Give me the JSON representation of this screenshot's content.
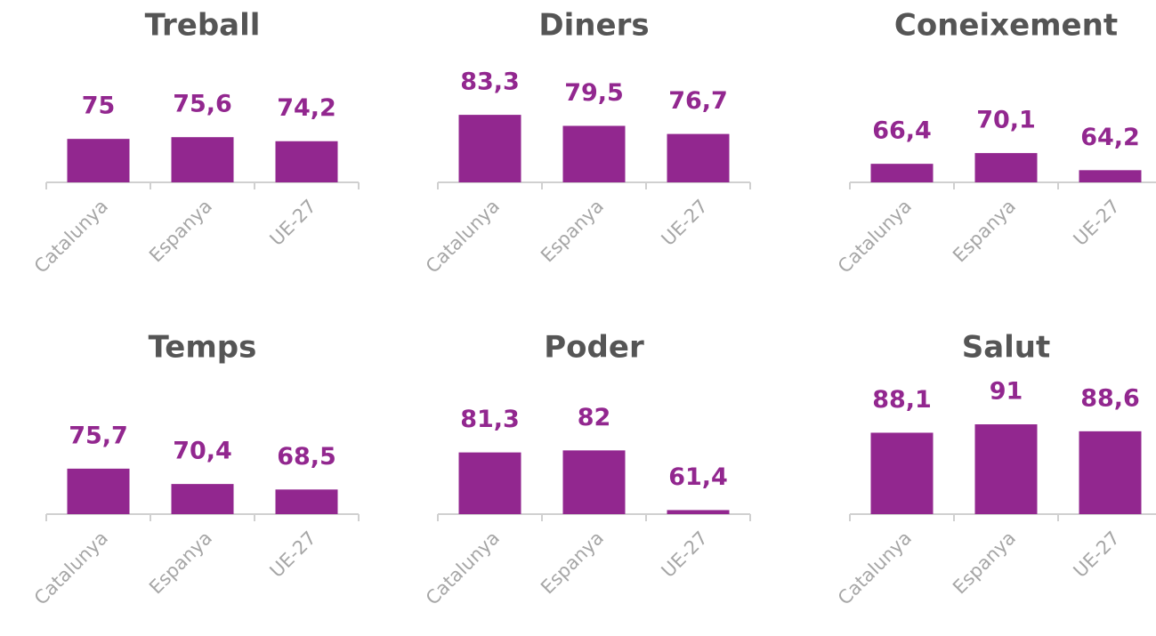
{
  "chart_data": [
    {
      "type": "bar",
      "title": "Treball",
      "categories": [
        "Catalunya",
        "Espanya",
        "UE-27"
      ],
      "values": [
        75,
        75.6,
        74.2
      ],
      "value_labels": [
        "75",
        "75,6",
        "74,2"
      ],
      "color": "#92278f",
      "ylim": [
        60,
        95
      ]
    },
    {
      "type": "bar",
      "title": "Diners",
      "categories": [
        "Catalunya",
        "Espanya",
        "UE-27"
      ],
      "values": [
        83.3,
        79.5,
        76.7
      ],
      "value_labels": [
        "83,3",
        "79,5",
        "76,7"
      ],
      "color": "#92278f",
      "ylim": [
        60,
        95
      ]
    },
    {
      "type": "bar",
      "title": "Coneixement",
      "categories": [
        "Catalunya",
        "Espanya",
        "UE-27"
      ],
      "values": [
        66.4,
        70.1,
        64.2
      ],
      "value_labels": [
        "66,4",
        "70,1",
        "64,2"
      ],
      "color": "#92278f",
      "ylim": [
        60,
        95
      ]
    },
    {
      "type": "bar",
      "title": "Temps",
      "categories": [
        "Catalunya",
        "Espanya",
        "UE-27"
      ],
      "values": [
        75.7,
        70.4,
        68.5
      ],
      "value_labels": [
        "75,7",
        "70,4",
        "68,5"
      ],
      "color": "#92278f",
      "ylim": [
        60,
        95
      ]
    },
    {
      "type": "bar",
      "title": "Poder",
      "categories": [
        "Catalunya",
        "Espanya",
        "UE-27"
      ],
      "values": [
        81.3,
        82,
        61.4
      ],
      "value_labels": [
        "81,3",
        "82",
        "61,4"
      ],
      "color": "#92278f",
      "ylim": [
        60,
        95
      ]
    },
    {
      "type": "bar",
      "title": "Salut",
      "categories": [
        "Catalunya",
        "Espanya",
        "UE-27"
      ],
      "values": [
        88.1,
        91,
        88.6
      ],
      "value_labels": [
        "88,1",
        "91",
        "88,6"
      ],
      "color": "#92278f",
      "ylim": [
        60,
        95
      ]
    }
  ]
}
